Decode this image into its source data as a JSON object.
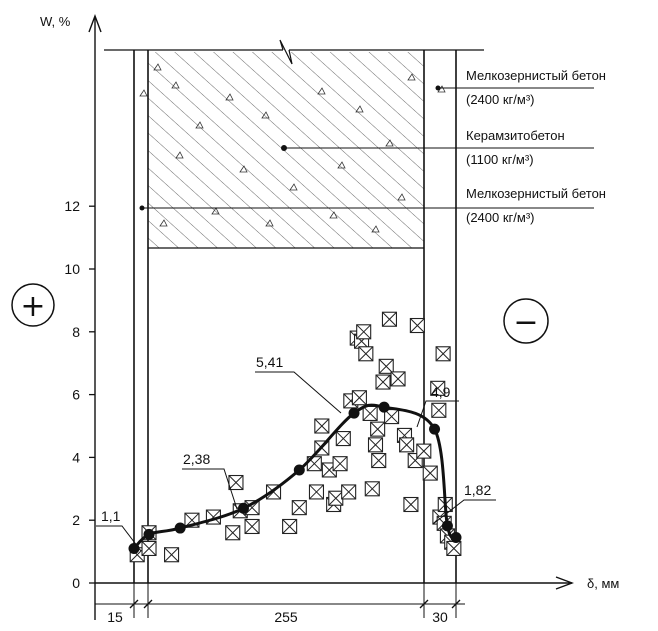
{
  "axes": {
    "y_label": "W, %",
    "x_label": "δ, мм",
    "y_ticks": [
      "0",
      "2",
      "4",
      "6",
      "8",
      "10",
      "12"
    ]
  },
  "layers": [
    {
      "name": "Мелкозернистый бетон",
      "density": "(2400 кг/м³)"
    },
    {
      "name": "Керамзитобетон",
      "density": "(1100 кг/м³)"
    },
    {
      "name": "Мелкозернистый бетон",
      "density": "(2400 кг/м³)"
    }
  ],
  "thickness_labels": [
    "15",
    "255",
    "30"
  ],
  "signs": {
    "left": "+",
    "right": "−"
  },
  "curve_values": [
    {
      "label": "1,1"
    },
    {
      "label": "2,38"
    },
    {
      "label": "5,41"
    },
    {
      "label": "4,9"
    },
    {
      "label": "1,82"
    }
  ],
  "chart_data": {
    "type": "scatter",
    "ylabel": "W, %",
    "xlabel": "δ, мм",
    "ylim": [
      0,
      13
    ],
    "xlim": [
      0,
      300
    ],
    "layer_thickness_mm": [
      15,
      255,
      30
    ],
    "curve": {
      "x": [
        0,
        14,
        43,
        102,
        154,
        205,
        233,
        280,
        292,
        300
      ],
      "y": [
        1.1,
        1.55,
        1.75,
        2.38,
        3.6,
        5.41,
        5.6,
        4.9,
        1.82,
        1.45
      ]
    },
    "labeled_values": [
      1.1,
      2.38,
      5.41,
      4.9,
      1.82
    ],
    "measurements": [
      [
        3,
        0.9
      ],
      [
        14,
        1.1
      ],
      [
        14,
        1.6
      ],
      [
        35,
        0.9
      ],
      [
        54,
        2.0
      ],
      [
        74,
        2.1
      ],
      [
        92,
        1.6
      ],
      [
        95,
        3.2
      ],
      [
        99,
        2.3
      ],
      [
        110,
        1.8
      ],
      [
        110,
        2.4
      ],
      [
        130,
        2.9
      ],
      [
        145,
        1.8
      ],
      [
        154,
        2.4
      ],
      [
        168,
        3.8
      ],
      [
        170,
        2.9
      ],
      [
        175,
        4.3
      ],
      [
        175,
        5.0
      ],
      [
        182,
        3.6
      ],
      [
        186,
        2.5
      ],
      [
        188,
        2.7
      ],
      [
        192,
        3.8
      ],
      [
        195,
        4.6
      ],
      [
        200,
        2.9
      ],
      [
        202,
        5.8
      ],
      [
        208,
        7.8
      ],
      [
        212,
        7.7
      ],
      [
        214,
        8.0
      ],
      [
        216,
        7.3
      ],
      [
        210,
        5.9
      ],
      [
        220,
        5.4
      ],
      [
        222,
        3.0
      ],
      [
        225,
        4.4
      ],
      [
        227,
        4.9
      ],
      [
        228,
        3.9
      ],
      [
        232,
        6.4
      ],
      [
        235,
        6.9
      ],
      [
        238,
        8.4
      ],
      [
        240,
        5.3
      ],
      [
        246,
        6.5
      ],
      [
        252,
        4.7
      ],
      [
        254,
        4.4
      ],
      [
        258,
        2.5
      ],
      [
        262,
        3.9
      ],
      [
        264,
        8.2
      ],
      [
        270,
        4.2
      ],
      [
        276,
        3.5
      ],
      [
        283,
        6.2
      ],
      [
        284,
        5.5
      ],
      [
        285,
        2.1
      ],
      [
        288,
        7.3
      ],
      [
        289,
        1.9
      ],
      [
        290,
        2.5
      ],
      [
        292,
        1.5
      ],
      [
        296,
        1.3
      ],
      [
        298,
        1.1
      ]
    ]
  }
}
